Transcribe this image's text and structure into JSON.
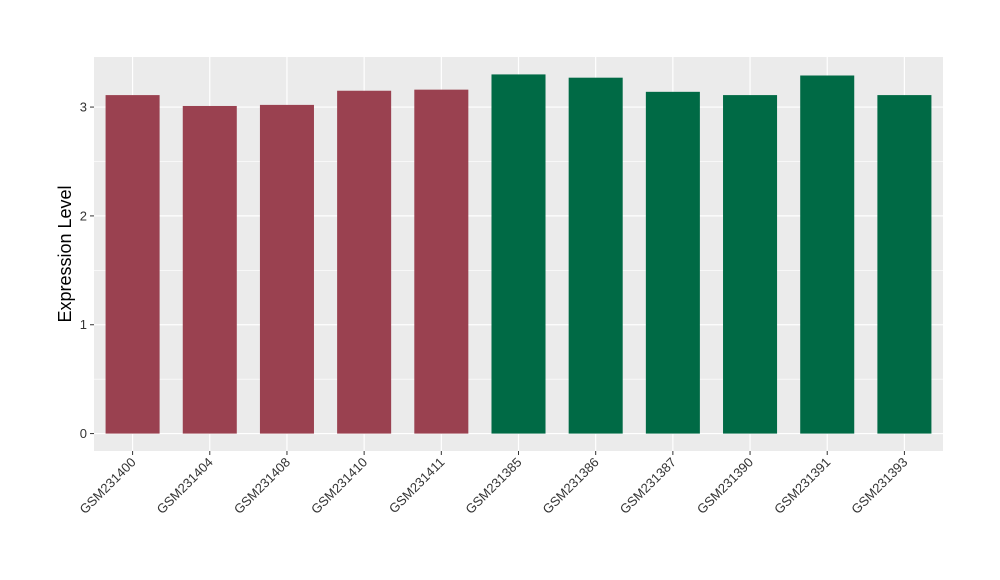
{
  "chart_data": {
    "type": "bar",
    "ylabel": "Expression Level",
    "xlabel": "",
    "title": "",
    "categories": [
      "GSM231400",
      "GSM231404",
      "GSM231408",
      "GSM231410",
      "GSM231411",
      "GSM231385",
      "GSM231386",
      "GSM231387",
      "GSM231390",
      "GSM231391",
      "GSM231393"
    ],
    "values": [
      3.11,
      3.01,
      3.02,
      3.15,
      3.16,
      3.3,
      3.27,
      3.14,
      3.11,
      3.29,
      3.11
    ],
    "bar_colors": [
      "#9a4150",
      "#9a4150",
      "#9a4150",
      "#9a4150",
      "#9a4150",
      "#006a45",
      "#006a45",
      "#006a45",
      "#006a45",
      "#006a45",
      "#006a45"
    ],
    "ylim": [
      -0.16,
      3.46
    ],
    "yticks": [
      0,
      1,
      2,
      3
    ],
    "grid": true,
    "legend": "none",
    "panel_color": "#ebebeb",
    "grid_color": "#ffffff"
  }
}
